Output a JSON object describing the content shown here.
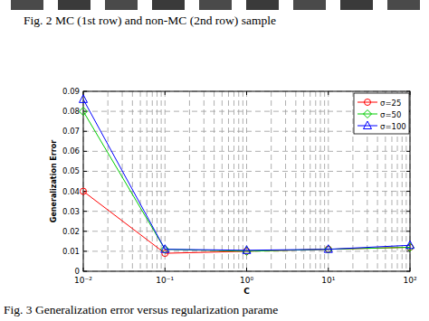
{
  "chart_data": {
    "type": "line",
    "annotations": [
      "Fig. 2  MC (1st row) and non-MC (2nd row) sample",
      "Fig. 3 Generalization error versus regularization parame"
    ],
    "x_label": "C",
    "y_label": "Generalization Error",
    "x": [
      0.01,
      0.1,
      1,
      10,
      100
    ],
    "series": [
      {
        "name": "σ=25",
        "color": "#ff0000",
        "marker": "circle",
        "values": [
          0.04,
          0.009,
          0.01,
          0.011,
          0.012
        ]
      },
      {
        "name": "σ=50",
        "color": "#00cc00",
        "marker": "diamond",
        "values": [
          0.08,
          0.011,
          0.01,
          0.011,
          0.012
        ]
      },
      {
        "name": "σ=100",
        "color": "#0000ff",
        "marker": "triangle",
        "values": [
          0.086,
          0.011,
          0.0105,
          0.011,
          0.013
        ]
      }
    ],
    "log": "x",
    "xlim": [
      0.01,
      100
    ],
    "xticks": [
      {
        "value": 0.01,
        "label": "10⁻²"
      },
      {
        "value": 0.1,
        "label": "10⁻¹"
      },
      {
        "value": 1,
        "label": "10⁰"
      },
      {
        "value": 10,
        "label": "10¹"
      },
      {
        "value": 100,
        "label": "10²"
      }
    ],
    "ylim": [
      0,
      0.09
    ],
    "yticks": [
      0,
      0.01,
      0.02,
      0.03,
      0.04,
      0.05,
      0.06,
      0.07,
      0.08,
      0.09
    ],
    "grid": true,
    "legend": "top-right"
  }
}
